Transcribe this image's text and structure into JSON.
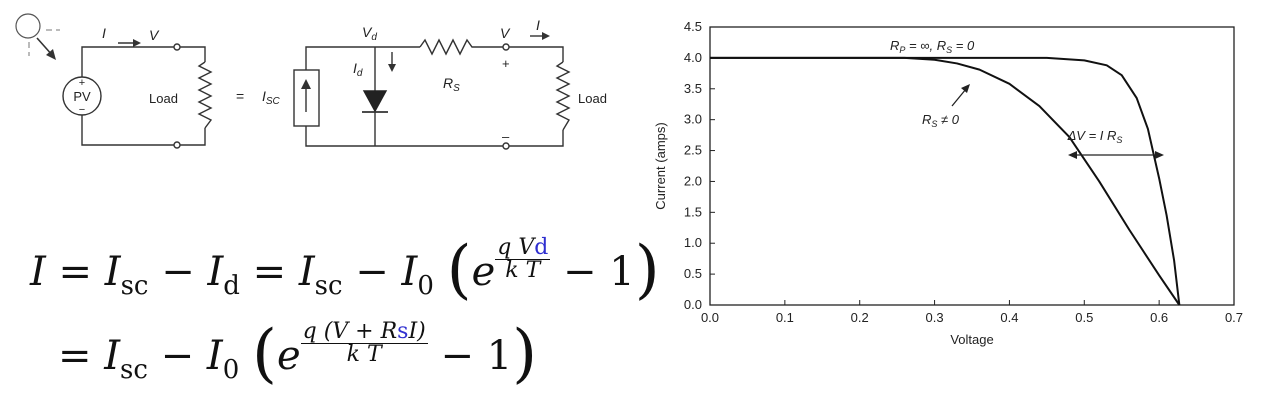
{
  "circuit_left": {
    "current_label": "I",
    "voltage_label": "V",
    "pv_label": "PV",
    "plus": "+",
    "minus": "−",
    "load_label": "Load",
    "equals": "="
  },
  "circuit_right": {
    "isc_label": "I",
    "isc_sub": "SC",
    "vd_label": "V",
    "vd_sub": "d",
    "id_label": "I",
    "id_sub": "d",
    "rs_label": "R",
    "rs_sub": "S",
    "v_label": "V",
    "i_label": "I",
    "plus": "+",
    "minus": "–",
    "load_label": "Load"
  },
  "equations": {
    "line1": {
      "lhs": "I",
      "t1": "I",
      "t1_sub": "sc",
      "t2": "I",
      "t2_sub": "d",
      "t3": "I",
      "t3_sub": "sc",
      "t4": "I",
      "t4_sub": "0",
      "exp_num": "q V",
      "exp_num_sub": "d",
      "exp_den": "k T",
      "one": "1"
    },
    "line2": {
      "t1": "I",
      "t1_sub": "sc",
      "t2": "I",
      "t2_sub": "0",
      "exp_num": "q (V + R",
      "exp_num_sub": "s",
      "exp_num_end": "I)",
      "exp_den": "k T",
      "one": "1"
    }
  },
  "chart_data": {
    "type": "line",
    "xlabel": "Voltage",
    "ylabel": "Current (amps)",
    "xlim": [
      0.0,
      0.7
    ],
    "ylim": [
      0.0,
      4.5
    ],
    "x_ticks": [
      "0.0",
      "0.1",
      "0.2",
      "0.3",
      "0.4",
      "0.5",
      "0.6",
      "0.7"
    ],
    "y_ticks": [
      "0.0",
      "0.5",
      "1.0",
      "1.5",
      "2.0",
      "2.5",
      "3.0",
      "3.5",
      "4.0",
      "4.5"
    ],
    "grid": false,
    "series": [
      {
        "name": "R_P = ∞, R_S = 0",
        "x": [
          0.0,
          0.45,
          0.5,
          0.53,
          0.55,
          0.57,
          0.585,
          0.6,
          0.61,
          0.62,
          0.627
        ],
        "y": [
          4.0,
          4.0,
          3.96,
          3.88,
          3.72,
          3.35,
          2.85,
          2.05,
          1.45,
          0.72,
          0.0
        ]
      },
      {
        "name": "R_S ≠ 0",
        "x": [
          0.0,
          0.26,
          0.3,
          0.33,
          0.36,
          0.4,
          0.44,
          0.48,
          0.52,
          0.56,
          0.6,
          0.627
        ],
        "y": [
          4.0,
          4.0,
          3.97,
          3.91,
          3.81,
          3.58,
          3.22,
          2.72,
          2.0,
          1.22,
          0.48,
          0.0
        ]
      }
    ],
    "annotations": {
      "top_label": "R_P = ∞, R_S = 0",
      "rs_label": "R_S ≠ 0",
      "dv_label": "ΔV = I R_S"
    }
  }
}
